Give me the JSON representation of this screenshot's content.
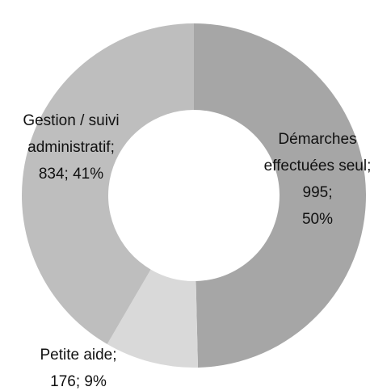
{
  "chart_data": {
    "type": "donut",
    "values": [
      995,
      176,
      834
    ],
    "value_labels": [
      [
        "Démarches",
        "effectuées seul;",
        "995;",
        "50%"
      ],
      [
        "Petite aide;",
        "176; 9%"
      ],
      [
        "Gestion / suivi",
        "administratif;",
        "834; 41%"
      ]
    ],
    "colors": [
      "#a6a6a6",
      "#d9d9d9",
      "#bebebe"
    ]
  }
}
